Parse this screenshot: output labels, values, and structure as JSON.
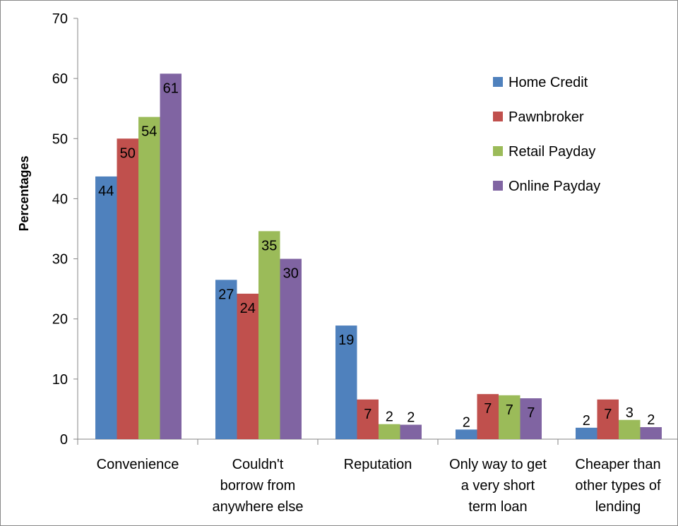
{
  "chart_data": {
    "type": "bar",
    "title": "",
    "xlabel": "",
    "ylabel": "Percentages",
    "ylim": [
      0,
      70
    ],
    "yticks": [
      0,
      10,
      20,
      30,
      40,
      50,
      60,
      70
    ],
    "grid": false,
    "legend_position": "top-right",
    "categories": [
      [
        "Convenience"
      ],
      [
        "Couldn't",
        "borrow from",
        "anywhere else"
      ],
      [
        "Reputation"
      ],
      [
        "Only way to get",
        "a very short",
        "term loan"
      ],
      [
        "Cheaper than",
        "other types of",
        "lending"
      ]
    ],
    "series": [
      {
        "name": "Home Credit",
        "color": "#4F81BD",
        "values": [
          43.7,
          26.5,
          18.9,
          1.6,
          1.9
        ],
        "labels": [
          "44",
          "27",
          "19",
          "2",
          "2"
        ]
      },
      {
        "name": "Pawnbroker",
        "color": "#C0504D",
        "values": [
          50.0,
          24.2,
          6.6,
          7.5,
          6.6
        ],
        "labels": [
          "50",
          "24",
          "7",
          "7",
          "7"
        ]
      },
      {
        "name": "Retail Payday",
        "color": "#9BBB59",
        "values": [
          53.6,
          34.6,
          2.5,
          7.3,
          3.2
        ],
        "labels": [
          "54",
          "35",
          "2",
          "7",
          "3"
        ]
      },
      {
        "name": "Online Payday",
        "color": "#8064A2",
        "values": [
          60.8,
          30.0,
          2.4,
          6.8,
          2.0
        ],
        "labels": [
          "61",
          "30",
          "2",
          "7",
          "2"
        ]
      }
    ]
  }
}
